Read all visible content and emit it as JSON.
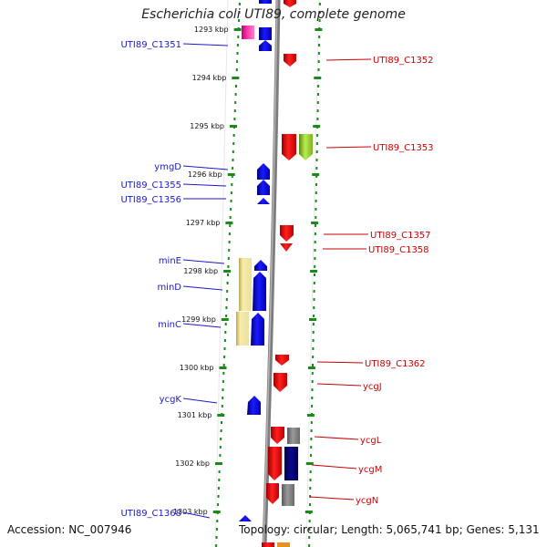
{
  "title": "Escherichia coli UTI89, complete genome",
  "footer": {
    "accession": "Accession: NC_007946",
    "stats": "Topology: circular; Length: 5,065,741 bp; Genes: 5,131"
  },
  "colors": {
    "left_label": "#1a1acc",
    "right_label": "#cc0000",
    "tick": "#1a8a1a",
    "backbone": "#7a7a7a"
  },
  "ticks": [
    "1293 kbp",
    "1294 kbp",
    "1295 kbp",
    "1296 kbp",
    "1297 kbp",
    "1298 kbp",
    "1299 kbp",
    "1300 kbp",
    "1301 kbp",
    "1302 kbp",
    "1303 kbp"
  ],
  "left_genes": [
    "UTI89_C1351",
    "ymgD",
    "UTI89_C1355",
    "UTI89_C1356",
    "minE",
    "minD",
    "minC",
    "ycgK",
    "UTI89_C1368"
  ],
  "right_genes": [
    "UTI89_C1352",
    "UTI89_C1353",
    "UTI89_C1357",
    "UTI89_C1358",
    "UTI89_C1362",
    "ycgJ",
    "ycgL",
    "ycgM",
    "ycgN"
  ]
}
